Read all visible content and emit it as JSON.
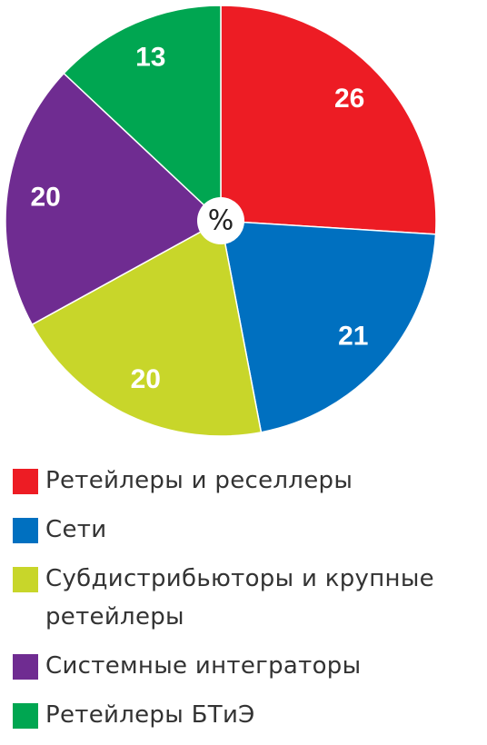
{
  "chart_data": {
    "type": "pie",
    "center_label": "%",
    "categories": [
      "Ретейлеры и реселлеры",
      "Сети",
      "Субдистрибьюторы и крупные ретейлеры",
      "Системные интеграторы",
      "Ретейлеры БТиЭ"
    ],
    "values": [
      26,
      21,
      20,
      20,
      13
    ],
    "colors": [
      "#ed1c24",
      "#0070c0",
      "#c8d62a",
      "#6f2c91",
      "#00a651"
    ]
  }
}
